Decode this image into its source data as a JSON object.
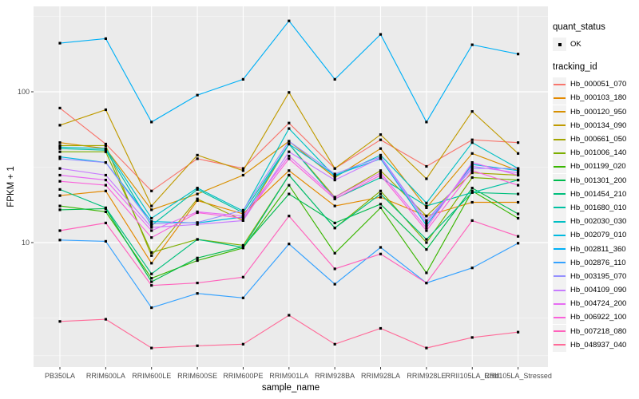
{
  "chart_data": {
    "type": "line",
    "title": "",
    "xlabel": "sample_name",
    "ylabel": "FPKM + 1",
    "y_scale": "log10",
    "y_ticks": [
      10,
      100
    ],
    "y_tick_labels": [
      "10",
      "100"
    ],
    "y_minor_gridlines": [
      1.778,
      3.162,
      31.62,
      316.2
    ],
    "ylim": [
      1.45,
      370
    ],
    "grid": true,
    "panel_bg": "#EBEBEB",
    "grid_color": "#FFFFFF",
    "tick_color": "#333333",
    "tick_label_color": "#4D4D4D",
    "point_color": "#000000",
    "point_shape": "square",
    "categories": [
      "PB350LA",
      "RRIM600LA",
      "RRIM600LE",
      "RRIM600SE",
      "RRIM600PE",
      "RRIM901LA",
      "RRIM928BA",
      "RRIM928LA",
      "RRIM928LE",
      "RRII105LA_Cold",
      "RRII105LA_Stressed"
    ],
    "series": [
      {
        "name": "Hb_000051_070",
        "color": "#F8766D",
        "values": [
          78,
          45,
          22,
          36,
          31,
          62,
          31,
          48,
          32,
          48,
          46
        ]
      },
      {
        "name": "Hb_000103_180",
        "color": "#E38900",
        "values": [
          20.5,
          22,
          7.3,
          19,
          15.5,
          30,
          17.5,
          20,
          15,
          18.5,
          18.5
        ]
      },
      {
        "name": "Hb_000120_950",
        "color": "#D89000",
        "values": [
          46,
          42,
          16.5,
          21,
          28,
          47,
          27,
          42,
          17,
          39,
          30
        ]
      },
      {
        "name": "Hb_000134_090",
        "color": "#C09B00",
        "values": [
          60,
          76,
          17.5,
          38,
          30,
          99,
          31,
          52,
          26.5,
          74,
          39
        ]
      },
      {
        "name": "Hb_000661_050",
        "color": "#A3A500",
        "values": [
          44,
          44,
          8.2,
          19.5,
          14,
          45,
          20,
          30,
          15,
          29,
          28
        ]
      },
      {
        "name": "Hb_001006_140",
        "color": "#7CAE00",
        "values": [
          40,
          40,
          8.6,
          10.5,
          9.6,
          28,
          12.5,
          22,
          10,
          27,
          26
        ]
      },
      {
        "name": "Hb_001199_020",
        "color": "#39B600",
        "values": [
          17.5,
          16,
          5.8,
          7.6,
          9.2,
          24,
          8.5,
          17,
          6.3,
          22,
          14.5
        ]
      },
      {
        "name": "Hb_001301_200",
        "color": "#00BB4E",
        "values": [
          16.5,
          16.8,
          5.5,
          7.9,
          9.4,
          21,
          13.5,
          18,
          9,
          23,
          15.5
        ]
      },
      {
        "name": "Hb_001454_210",
        "color": "#00BF7D",
        "values": [
          22.5,
          17,
          6.2,
          10.5,
          9.3,
          28,
          12.5,
          21,
          10.5,
          21.5,
          21
        ]
      },
      {
        "name": "Hb_001680_010",
        "color": "#00C1A3",
        "values": [
          42,
          41,
          13,
          22.5,
          15.8,
          45,
          19.5,
          27,
          17.5,
          21.5,
          26
        ]
      },
      {
        "name": "Hb_002030_030",
        "color": "#00BFC4",
        "values": [
          43,
          42,
          14.5,
          23,
          16.2,
          57,
          27.5,
          38,
          18.3,
          46,
          31
        ]
      },
      {
        "name": "Hb_002079_010",
        "color": "#00BAE0",
        "values": [
          37,
          34,
          13.8,
          13.5,
          14.8,
          45,
          28,
          36,
          13,
          33,
          30
        ]
      },
      {
        "name": "Hb_002811_360",
        "color": "#00B0F6",
        "values": [
          210,
          225,
          63,
          95,
          121,
          295,
          121,
          240,
          63,
          205,
          178
        ]
      },
      {
        "name": "Hb_002876_110",
        "color": "#35A2FF",
        "values": [
          10.4,
          10.2,
          3.7,
          4.6,
          4.3,
          9.8,
          5.3,
          9.3,
          5.4,
          6.8,
          9.9
        ]
      },
      {
        "name": "Hb_003195_070",
        "color": "#9590FF",
        "values": [
          36,
          34,
          13.3,
          13.6,
          16.4,
          47,
          28.5,
          37,
          14,
          31,
          31
        ]
      },
      {
        "name": "Hb_004109_090",
        "color": "#C77CFF",
        "values": [
          31,
          28,
          12.6,
          13.2,
          14,
          40,
          26,
          36.5,
          13.5,
          32,
          29
        ]
      },
      {
        "name": "Hb_004724_200",
        "color": "#E76BF3",
        "values": [
          28,
          26,
          12,
          16,
          15,
          37.5,
          20,
          29,
          12.5,
          34,
          28
        ]
      },
      {
        "name": "Hb_006922_100",
        "color": "#FA62DB",
        "values": [
          25.5,
          24,
          10.8,
          15.8,
          14.5,
          36,
          19.5,
          28,
          12,
          30,
          24
        ]
      },
      {
        "name": "Hb_007218_080",
        "color": "#FF62BC",
        "values": [
          12,
          13.5,
          5.2,
          5.4,
          5.9,
          15,
          6.7,
          8.4,
          5.4,
          14,
          11
        ]
      },
      {
        "name": "Hb_048937_040",
        "color": "#FF6A98",
        "values": [
          3.0,
          3.1,
          2.0,
          2.07,
          2.12,
          3.3,
          2.12,
          2.7,
          2.0,
          2.35,
          2.55
        ]
      }
    ],
    "legend": {
      "position": "right",
      "quant_status_title": "quant_status",
      "quant_status_items": [
        {
          "label": "OK"
        }
      ],
      "tracking_title": "tracking_id",
      "key_bg": "#F2F2F2"
    }
  }
}
